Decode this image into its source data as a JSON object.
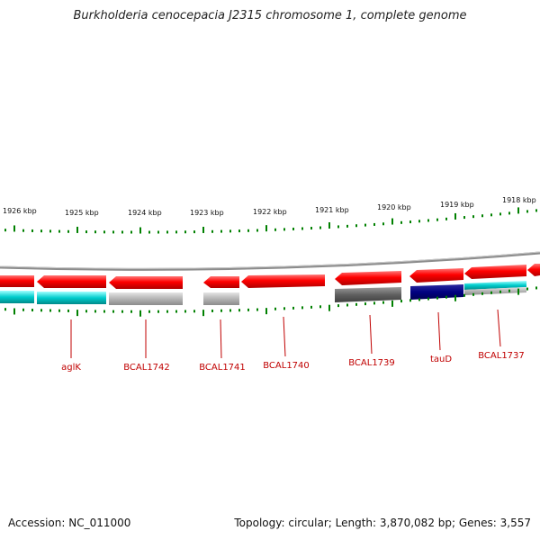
{
  "header": {
    "title": "Burkholderia cenocepacia J2315 chromosome 1, complete genome"
  },
  "footer": {
    "accession": "Accession: NC_011000",
    "topology": "Topology: circular; Length: 3,870,082 bp; Genes: 3,557"
  },
  "colors": {
    "red": "#ff0000",
    "cyan": "#00cccc",
    "grey": "#b0b0b0",
    "dark_grey": "#606060",
    "navy": "#000080",
    "tick_green": "#008000",
    "label_red": "#c00000",
    "backbone": "#888888"
  },
  "kbp_labels": [
    "1926 kbp",
    "1925 kbp",
    "1924 kbp",
    "1923 kbp",
    "1922 kbp",
    "1921 kbp",
    "1920 kbp",
    "1919 kbp",
    "1918 kbp"
  ],
  "gene_labels": [
    "aglK",
    "BCAL1742",
    "BCAL1741",
    "BCAL1740",
    "BCAL1739",
    "tauD",
    "BCAL1737"
  ]
}
